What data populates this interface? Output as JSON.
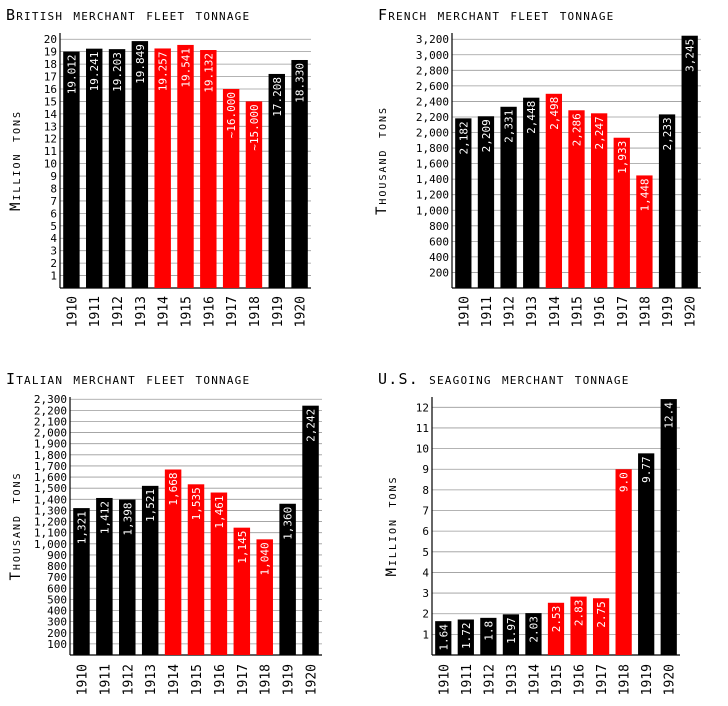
{
  "colors": {
    "peace": "#000000",
    "war": "#ff0000"
  },
  "chart_data": [
    {
      "type": "bar",
      "title": "British merchant fleet tonnage",
      "ylabel": "Million tons",
      "xlabel": "",
      "ylim": [
        0,
        20.5
      ],
      "yticks": [
        1,
        2,
        3,
        4,
        5,
        6,
        7,
        8,
        9,
        10,
        11,
        12,
        13,
        14,
        15,
        16,
        17,
        18,
        19,
        20
      ],
      "ytick_labels": [
        "1",
        "2",
        "3",
        "4",
        "5",
        "6",
        "7",
        "8",
        "9",
        "10",
        "11",
        "12",
        "13",
        "14",
        "15",
        "16",
        "17",
        "18",
        "19",
        "20"
      ],
      "grid": true,
      "categories": [
        "1910",
        "1911",
        "1912",
        "1913",
        "1914",
        "1915",
        "1916",
        "1917",
        "1918",
        "1919",
        "1920"
      ],
      "values": [
        19.012,
        19.241,
        19.203,
        19.849,
        19.257,
        19.541,
        19.132,
        16.0,
        15.0,
        17.208,
        18.33
      ],
      "value_labels": [
        "19.012",
        "19.241",
        "19.203",
        "19.849",
        "19.257",
        "19.541",
        "19.132",
        "~16.000",
        "~15.000",
        "17.208",
        "18.330"
      ],
      "war_years": [
        "1914",
        "1915",
        "1916",
        "1917",
        "1918"
      ]
    },
    {
      "type": "bar",
      "title": "French merchant fleet tonnage",
      "ylabel": "Thousand tons",
      "xlabel": "",
      "ylim": [
        0,
        3280
      ],
      "yticks": [
        200,
        400,
        600,
        800,
        1000,
        1200,
        1400,
        1600,
        1800,
        2000,
        2200,
        2400,
        2600,
        2800,
        3000,
        3200
      ],
      "ytick_labels": [
        "200",
        "400",
        "600",
        "800",
        "1,000",
        "1,200",
        "1,400",
        "1,600",
        "1,800",
        "2,000",
        "2,200",
        "2,400",
        "2,600",
        "2,800",
        "3,000",
        "3,200"
      ],
      "grid": true,
      "categories": [
        "1910",
        "1911",
        "1912",
        "1913",
        "1914",
        "1915",
        "1916",
        "1917",
        "1918",
        "1919",
        "1920"
      ],
      "values": [
        2182,
        2209,
        2331,
        2448,
        2498,
        2286,
        2247,
        1933,
        1448,
        2233,
        3245
      ],
      "value_labels": [
        "2,182",
        "2,209",
        "2,331",
        "2,448",
        "2,498",
        "2,286",
        "2,247",
        "1,933",
        "1,448",
        "2,233",
        "3,245"
      ],
      "war_years": [
        "1914",
        "1915",
        "1916",
        "1917",
        "1918"
      ]
    },
    {
      "type": "bar",
      "title": "Italian merchant fleet tonnage",
      "ylabel": "Thousand tons",
      "xlabel": "",
      "ylim": [
        0,
        2320
      ],
      "yticks": [
        100,
        200,
        300,
        400,
        500,
        600,
        700,
        800,
        900,
        1000,
        1100,
        1200,
        1300,
        1400,
        1500,
        1600,
        1700,
        1800,
        1900,
        2000,
        2100,
        2200,
        2300
      ],
      "ytick_labels": [
        "100",
        "200",
        "300",
        "400",
        "500",
        "600",
        "700",
        "800",
        "900",
        "1,000",
        "1,100",
        "1,200",
        "1,300",
        "1,400",
        "1,500",
        "1,600",
        "1,700",
        "1,800",
        "1,900",
        "2,000",
        "2,100",
        "2,200",
        "2,300"
      ],
      "grid": true,
      "categories": [
        "1910",
        "1911",
        "1912",
        "1913",
        "1914",
        "1915",
        "1916",
        "1917",
        "1918",
        "1919",
        "1920"
      ],
      "values": [
        1321,
        1412,
        1398,
        1521,
        1668,
        1535,
        1461,
        1145,
        1040,
        1360,
        2242
      ],
      "value_labels": [
        "1,321",
        "1,412",
        "1,398",
        "1,521",
        "1,668",
        "1,535",
        "1,461",
        "1,145",
        "1,040",
        "1,360",
        "2,242"
      ],
      "war_years": [
        "1914",
        "1915",
        "1916",
        "1917",
        "1918"
      ]
    },
    {
      "type": "bar",
      "title": "U.S. seagoing merchant tonnage",
      "ylabel": "Million tons",
      "xlabel": "",
      "ylim": [
        0,
        12.5
      ],
      "yticks": [
        1,
        2,
        3,
        4,
        5,
        6,
        7,
        8,
        9,
        10,
        11,
        12
      ],
      "ytick_labels": [
        "1",
        "2",
        "3",
        "4",
        "5",
        "6",
        "7",
        "8",
        "9",
        "10",
        "11",
        "12"
      ],
      "grid": true,
      "categories": [
        "1910",
        "1911",
        "1912",
        "1913",
        "1914",
        "1915",
        "1916",
        "1917",
        "1918",
        "1919",
        "1920"
      ],
      "values": [
        1.64,
        1.72,
        1.8,
        1.97,
        2.03,
        2.53,
        2.83,
        2.75,
        9.0,
        9.77,
        12.4
      ],
      "value_labels": [
        "1.64",
        "1.72",
        "1.8",
        "1.97",
        "2.03",
        "2.53",
        "2.83",
        "2.75",
        "9.0",
        "9.77",
        "12.4"
      ],
      "war_years": [
        "1915",
        "1916",
        "1917",
        "1918"
      ]
    }
  ]
}
